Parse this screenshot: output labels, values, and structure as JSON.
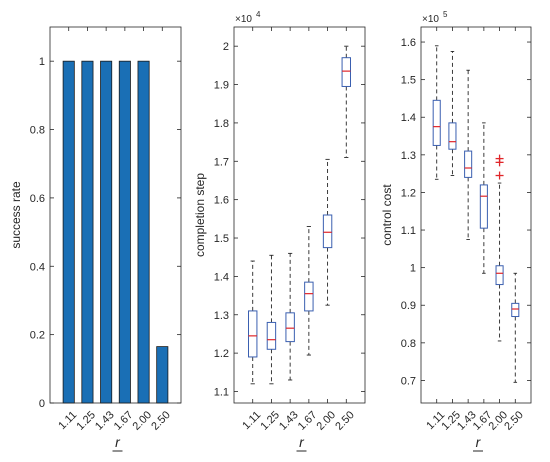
{
  "chart_data": [
    {
      "type": "bar",
      "categories": [
        "1.11",
        "1.25",
        "1.43",
        "1.67",
        "2.00",
        "2.50"
      ],
      "values": [
        1,
        1,
        1,
        1,
        1,
        0.165
      ],
      "xlabel": "r",
      "ylabel": "success rate",
      "ylim": [
        0,
        1.1
      ],
      "yticks": [
        "0",
        "0.2",
        "0.4",
        "0.6",
        "0.8",
        "1"
      ],
      "ytick_values": [
        0,
        0.2,
        0.4,
        0.6,
        0.8,
        1
      ],
      "bar_color": "#1a6fb5",
      "grid": false
    },
    {
      "type": "box",
      "categories": [
        "1.11",
        "1.25",
        "1.43",
        "1.67",
        "2.00",
        "2.50"
      ],
      "boxes": [
        {
          "whisker_low": 1.12,
          "q1": 1.19,
          "median": 1.245,
          "q3": 1.31,
          "whisker_high": 1.44,
          "outliers": []
        },
        {
          "whisker_low": 1.12,
          "q1": 1.21,
          "median": 1.235,
          "q3": 1.28,
          "whisker_high": 1.455,
          "outliers": []
        },
        {
          "whisker_low": 1.13,
          "q1": 1.23,
          "median": 1.265,
          "q3": 1.305,
          "whisker_high": 1.46,
          "outliers": []
        },
        {
          "whisker_low": 1.195,
          "q1": 1.31,
          "median": 1.355,
          "q3": 1.385,
          "whisker_high": 1.53,
          "outliers": []
        },
        {
          "whisker_low": 1.325,
          "q1": 1.475,
          "median": 1.515,
          "q3": 1.56,
          "whisker_high": 1.705,
          "outliers": []
        },
        {
          "whisker_low": 1.71,
          "q1": 1.895,
          "median": 1.935,
          "q3": 1.97,
          "whisker_high": 2.0,
          "outliers": []
        }
      ],
      "xlabel": "r",
      "ylabel": "completion step",
      "ylim": [
        1.07,
        2.05
      ],
      "multiplier": "×10",
      "multiplier_exp": "4",
      "yticks": [
        "1.1",
        "1.2",
        "1.3",
        "1.4",
        "1.5",
        "1.6",
        "1.7",
        "1.8",
        "1.9",
        "2"
      ],
      "ytick_values": [
        1.1,
        1.2,
        1.3,
        1.4,
        1.5,
        1.6,
        1.7,
        1.8,
        1.9,
        2.0
      ],
      "box_color": "#3a5fb0",
      "median_color": "#e0262a",
      "grid": false
    },
    {
      "type": "box",
      "categories": [
        "1.11",
        "1.25",
        "1.43",
        "1.67",
        "2.00",
        "2.50"
      ],
      "boxes": [
        {
          "whisker_low": 1.235,
          "q1": 1.325,
          "median": 1.375,
          "q3": 1.445,
          "whisker_high": 1.59,
          "outliers": []
        },
        {
          "whisker_low": 1.245,
          "q1": 1.315,
          "median": 1.335,
          "q3": 1.385,
          "whisker_high": 1.575,
          "outliers": []
        },
        {
          "whisker_low": 1.075,
          "q1": 1.24,
          "median": 1.265,
          "q3": 1.31,
          "whisker_high": 1.525,
          "outliers": []
        },
        {
          "whisker_low": 0.985,
          "q1": 1.105,
          "median": 1.19,
          "q3": 1.22,
          "whisker_high": 1.385,
          "outliers": []
        },
        {
          "whisker_low": 0.805,
          "q1": 0.955,
          "median": 0.985,
          "q3": 1.005,
          "whisker_high": 1.225,
          "outliers": [
            1.245,
            1.28,
            1.29
          ]
        },
        {
          "whisker_low": 0.695,
          "q1": 0.87,
          "median": 0.89,
          "q3": 0.905,
          "whisker_high": 0.985,
          "outliers": []
        }
      ],
      "xlabel": "r",
      "ylabel": "control cost",
      "ylim": [
        0.64,
        1.64
      ],
      "multiplier": "×10",
      "multiplier_exp": "5",
      "yticks": [
        "0.7",
        "0.8",
        "0.9",
        "1",
        "1.1",
        "1.2",
        "1.3",
        "1.4",
        "1.5",
        "1.6"
      ],
      "ytick_values": [
        0.7,
        0.8,
        0.9,
        1.0,
        1.1,
        1.2,
        1.3,
        1.4,
        1.5,
        1.6
      ],
      "box_color": "#3a5fb0",
      "median_color": "#e0262a",
      "outlier_color": "#e0262a",
      "grid": false
    }
  ]
}
